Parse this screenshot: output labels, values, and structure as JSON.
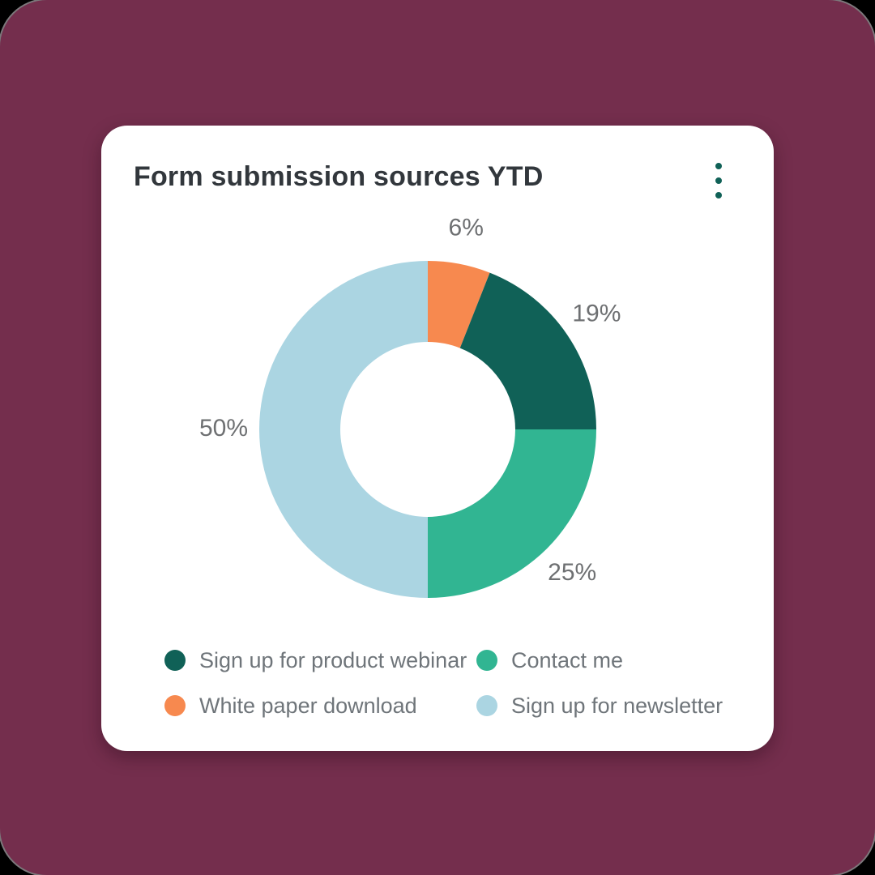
{
  "card": {
    "title": "Form submission sources YTD",
    "menu_icon": "kebab-vertical-dots"
  },
  "colors": {
    "app_background": "#742E4D",
    "card_background": "#FFFFFF",
    "title_text": "#32373C",
    "percent_label_text": "#6E7072",
    "legend_label_text": "#6F757A",
    "menu_dots": "#106157",
    "donut_hole": "#FFFFFF"
  },
  "chart_data": {
    "type": "pie",
    "variant": "donut",
    "title": "Form submission sources YTD",
    "direction": "clockwise",
    "start_angle_deg": 0,
    "donut_hole_ratio": 0.52,
    "legend_position": "bottom",
    "segments": [
      {
        "label": "White paper download",
        "value_pct": 6,
        "data_label": "6%",
        "color": "#F7894F"
      },
      {
        "label": "Sign up for product webinar",
        "value_pct": 19,
        "data_label": "19%",
        "color": "#106157"
      },
      {
        "label": "Contact me",
        "value_pct": 25,
        "data_label": "25%",
        "color": "#31B592"
      },
      {
        "label": "Sign up for newsletter",
        "value_pct": 50,
        "data_label": "50%",
        "color": "#ABD5E2"
      }
    ],
    "legend_order": [
      1,
      2,
      0,
      3
    ]
  }
}
